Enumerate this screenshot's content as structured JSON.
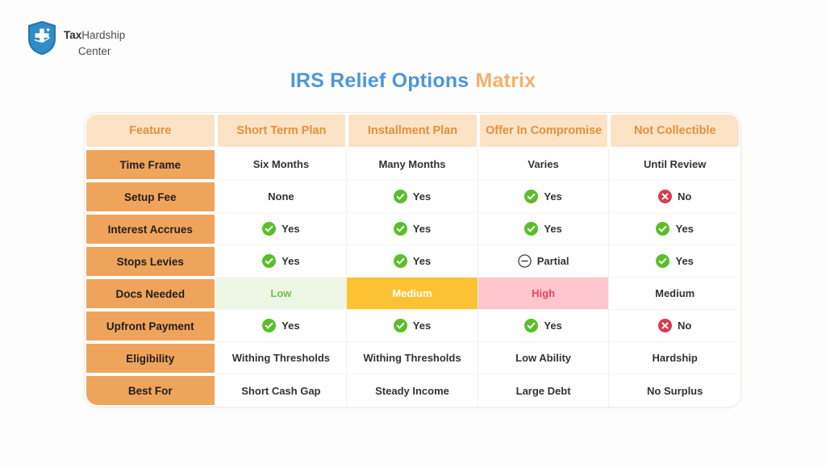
{
  "logo": {
    "brand_bold": "Tax",
    "brand_regular": "Hardship",
    "line2": "Center",
    "shield_icon": "shield-cross-icon",
    "shield_color": "#2f8cc7"
  },
  "title": {
    "part1": "IRS Relief Options",
    "part2": "Matrix",
    "part1_color": "#4e96d9",
    "part2_color": "#f5b06a"
  },
  "colors": {
    "header_bg": "#fce3c6",
    "header_text": "#e0913f",
    "feature_bg": "#efa45c",
    "yes_green": "#5abe29",
    "no_red": "#d63c4e",
    "low_bg": "#edf6e5",
    "low_text": "#6cc24a",
    "medium_bg": "#fcc233",
    "high_bg": "#fdc5cc",
    "high_text": "#e8465e"
  },
  "table": {
    "columns": [
      "Feature",
      "Short Term Plan",
      "Installment Plan",
      "Offer In Compromise",
      "Not Collectible"
    ],
    "rows": [
      {
        "feature": "Time Frame",
        "cells": [
          {
            "type": "text",
            "label": "Six Months"
          },
          {
            "type": "text",
            "label": "Many Months"
          },
          {
            "type": "text",
            "label": "Varies"
          },
          {
            "type": "text",
            "label": "Until Review"
          }
        ]
      },
      {
        "feature": "Setup Fee",
        "cells": [
          {
            "type": "text",
            "label": "None"
          },
          {
            "type": "yes",
            "label": "Yes",
            "icon": "check-circle-icon"
          },
          {
            "type": "yes",
            "label": "Yes",
            "icon": "check-circle-icon"
          },
          {
            "type": "no",
            "label": "No",
            "icon": "x-circle-icon"
          }
        ]
      },
      {
        "feature": "Interest Accrues",
        "cells": [
          {
            "type": "yes",
            "label": "Yes",
            "icon": "check-circle-icon"
          },
          {
            "type": "yes",
            "label": "Yes",
            "icon": "check-circle-icon"
          },
          {
            "type": "yes",
            "label": "Yes",
            "icon": "check-circle-icon"
          },
          {
            "type": "yes",
            "label": "Yes",
            "icon": "check-circle-icon"
          }
        ]
      },
      {
        "feature": "Stops Levies",
        "cells": [
          {
            "type": "yes",
            "label": "Yes",
            "icon": "check-circle-icon"
          },
          {
            "type": "yes",
            "label": "Yes",
            "icon": "check-circle-icon"
          },
          {
            "type": "partial",
            "label": "Partial",
            "icon": "minus-circle-icon"
          },
          {
            "type": "yes",
            "label": "Yes",
            "icon": "check-circle-icon"
          }
        ]
      },
      {
        "feature": "Docs Needed",
        "cells": [
          {
            "type": "level",
            "style": "low",
            "label": "Low"
          },
          {
            "type": "level",
            "style": "medium",
            "label": "Medium"
          },
          {
            "type": "level",
            "style": "high",
            "label": "High"
          },
          {
            "type": "level",
            "style": "plain",
            "label": "Medium"
          }
        ]
      },
      {
        "feature": "Upfront Payment",
        "cells": [
          {
            "type": "yes",
            "label": "Yes",
            "icon": "check-circle-icon"
          },
          {
            "type": "yes",
            "label": "Yes",
            "icon": "check-circle-icon"
          },
          {
            "type": "yes",
            "label": "Yes",
            "icon": "check-circle-icon"
          },
          {
            "type": "no",
            "label": "No",
            "icon": "x-circle-icon"
          }
        ]
      },
      {
        "feature": "Eligibility",
        "cells": [
          {
            "type": "text",
            "label": "Withing Thresholds"
          },
          {
            "type": "text",
            "label": "Withing Thresholds"
          },
          {
            "type": "text",
            "label": "Low Ability"
          },
          {
            "type": "text",
            "label": "Hardship"
          }
        ]
      },
      {
        "feature": "Best For",
        "cells": [
          {
            "type": "text",
            "label": "Short Cash Gap"
          },
          {
            "type": "text",
            "label": "Steady Income"
          },
          {
            "type": "text",
            "label": "Large Debt"
          },
          {
            "type": "text",
            "label": "No Surplus"
          }
        ]
      }
    ]
  },
  "chart_data": {
    "type": "table",
    "title": "IRS Relief Options Matrix",
    "columns": [
      "Feature",
      "Short Term Plan",
      "Installment Plan",
      "Offer In Compromise",
      "Not Collectible"
    ],
    "rows": [
      [
        "Time Frame",
        "Six Months",
        "Many Months",
        "Varies",
        "Until Review"
      ],
      [
        "Setup Fee",
        "None",
        "Yes",
        "Yes",
        "No"
      ],
      [
        "Interest Accrues",
        "Yes",
        "Yes",
        "Yes",
        "Yes"
      ],
      [
        "Stops Levies",
        "Yes",
        "Yes",
        "Partial",
        "Yes"
      ],
      [
        "Docs Needed",
        "Low",
        "Medium",
        "High",
        "Medium"
      ],
      [
        "Upfront Payment",
        "Yes",
        "Yes",
        "Yes",
        "No"
      ],
      [
        "Eligibility",
        "Withing Thresholds",
        "Withing Thresholds",
        "Low Ability",
        "Hardship"
      ],
      [
        "Best For",
        "Short Cash Gap",
        "Steady Income",
        "Large Debt",
        "No Surplus"
      ]
    ]
  }
}
